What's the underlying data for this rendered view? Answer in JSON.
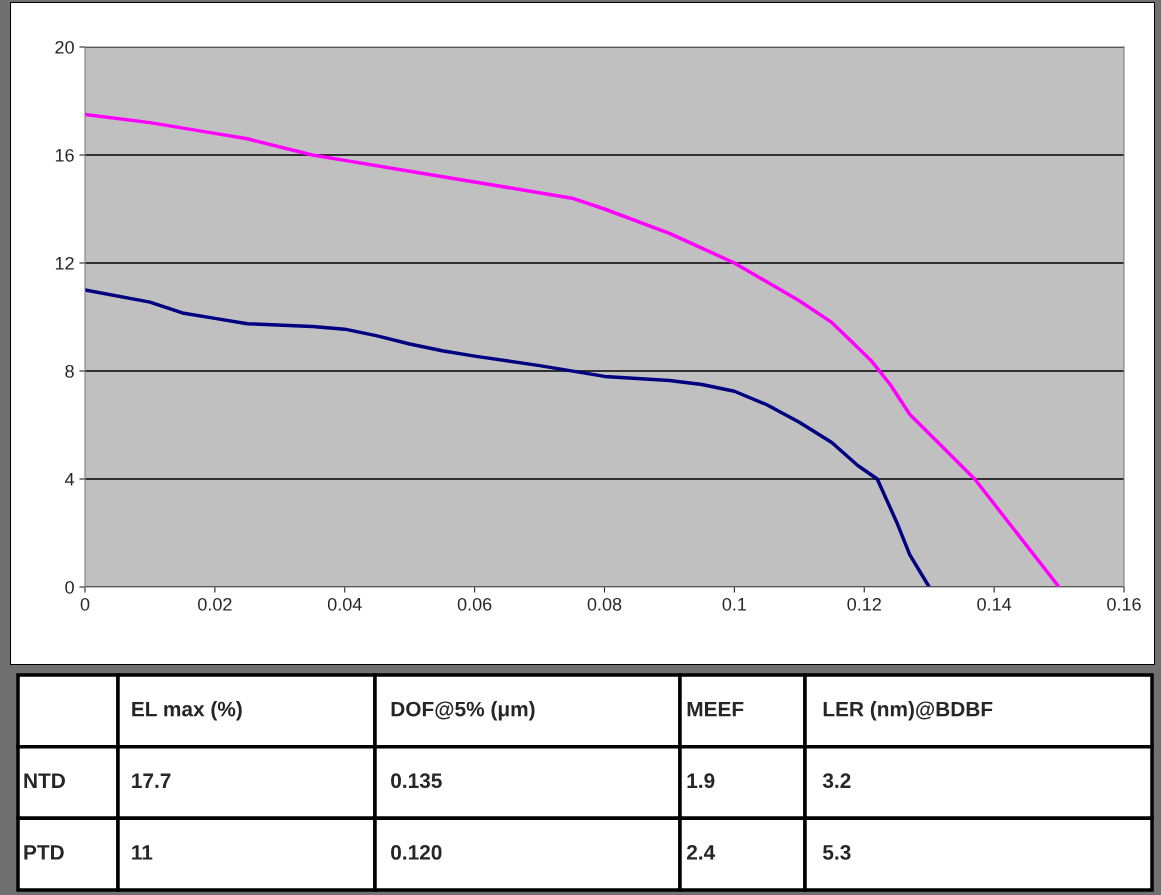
{
  "chart_data": [
    {
      "type": "line",
      "x": [
        0,
        0.01,
        0.02,
        0.025,
        0.035,
        0.04,
        0.05,
        0.06,
        0.075,
        0.08,
        0.09,
        0.1,
        0.11,
        0.115,
        0.118,
        0.121,
        0.124,
        0.127,
        0.137,
        0.15
      ],
      "series": [
        {
          "color": "#ff00ff",
          "values": [
            17.5,
            17.2,
            16.8,
            16.6,
            16.0,
            15.8,
            15.4,
            15.0,
            14.4,
            14.0,
            13.1,
            12.0,
            10.6,
            9.8,
            9.1,
            8.4,
            7.5,
            6.4,
            4.0,
            0
          ]
        },
        {
          "color": "#000080",
          "x": [
            0,
            0.01,
            0.015,
            0.02,
            0.025,
            0.035,
            0.04,
            0.045,
            0.05,
            0.055,
            0.06,
            0.07,
            0.08,
            0.09,
            0.095,
            0.1,
            0.105,
            0.11,
            0.115,
            0.119,
            0.122,
            0.125,
            0.127,
            0.13
          ],
          "values": [
            11.0,
            10.55,
            10.15,
            9.95,
            9.75,
            9.65,
            9.55,
            9.3,
            9.0,
            8.75,
            8.55,
            8.2,
            7.8,
            7.65,
            7.5,
            7.25,
            6.75,
            6.1,
            5.35,
            4.5,
            4.0,
            2.4,
            1.2,
            0
          ]
        }
      ],
      "xlim": [
        0,
        0.16
      ],
      "xticks": [
        0,
        0.02,
        0.04,
        0.06,
        0.08,
        0.1,
        0.12,
        0.14,
        0.16
      ],
      "ylim": [
        0,
        20
      ],
      "yticks": [
        0,
        4,
        8,
        12,
        16,
        20
      ],
      "grid": "y",
      "legend": false,
      "marker": "none",
      "line_style": "solid"
    },
    {
      "type": "other",
      "categories": [
        null,
        "EL max (%)",
        "DOF@5% (μm)",
        "MEEF",
        "LER (nm)@BDBF"
      ],
      "y_categories": [
        "NTD",
        "PTD"
      ],
      "cell_labels": [
        [
          "17.7",
          "0.135",
          "1.9",
          "3.2"
        ],
        [
          "11",
          "0.120",
          "2.4",
          "5.3"
        ]
      ]
    }
  ]
}
